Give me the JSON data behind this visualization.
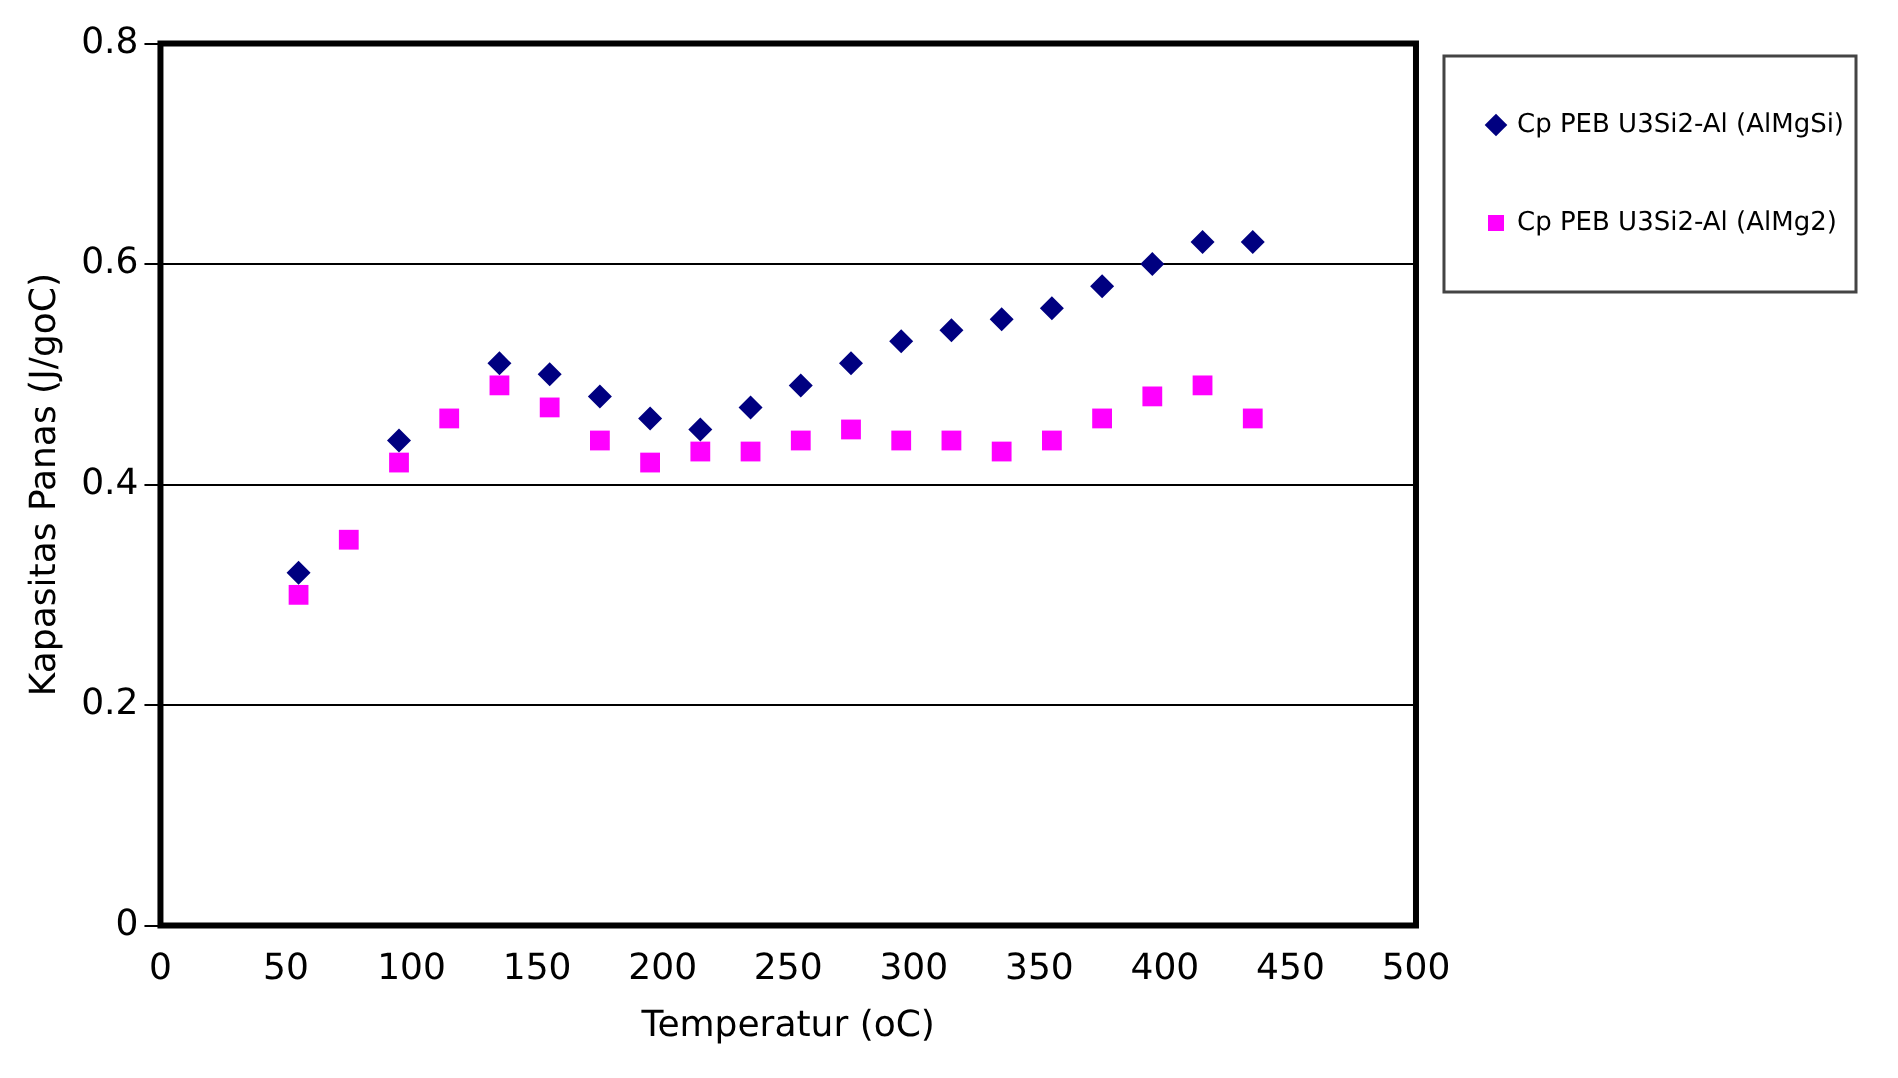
{
  "chart_data": {
    "type": "scatter",
    "xlabel": "Temperatur (oC)",
    "ylabel": "Kapasitas Panas (J/goC)",
    "xlim": [
      0,
      500
    ],
    "xticks": [
      0,
      50,
      100,
      150,
      200,
      250,
      300,
      350,
      400,
      450,
      500
    ],
    "ylim": [
      0,
      0.8
    ],
    "yticks": [
      0,
      0.2,
      0.4,
      0.6,
      0.8
    ],
    "grid": "y",
    "legend": "top right",
    "series": [
      {
        "name": "Cp PEB U3Si2-Al (AlMgSi)",
        "color": "#000080",
        "marker": "diamond",
        "x": [
          55,
          95,
          135,
          155,
          175,
          195,
          215,
          235,
          255,
          275,
          295,
          315,
          335,
          355,
          375,
          395,
          415,
          435
        ],
        "values": [
          0.32,
          0.44,
          0.51,
          0.5,
          0.48,
          0.46,
          0.45,
          0.47,
          0.49,
          0.51,
          0.53,
          0.54,
          0.55,
          0.56,
          0.58,
          0.6,
          0.62,
          0.62
        ]
      },
      {
        "name": "Cp PEB U3Si2-Al (AlMg2)",
        "color": "#ff00ff",
        "marker": "square",
        "x": [
          55,
          75,
          95,
          115,
          135,
          155,
          175,
          195,
          215,
          235,
          255,
          275,
          295,
          315,
          335,
          355,
          375,
          395,
          415,
          435
        ],
        "values": [
          0.3,
          0.35,
          0.42,
          0.46,
          0.49,
          0.47,
          0.44,
          0.42,
          0.43,
          0.43,
          0.44,
          0.45,
          0.44,
          0.44,
          0.43,
          0.44,
          0.46,
          0.48,
          0.49,
          0.46
        ]
      }
    ]
  }
}
